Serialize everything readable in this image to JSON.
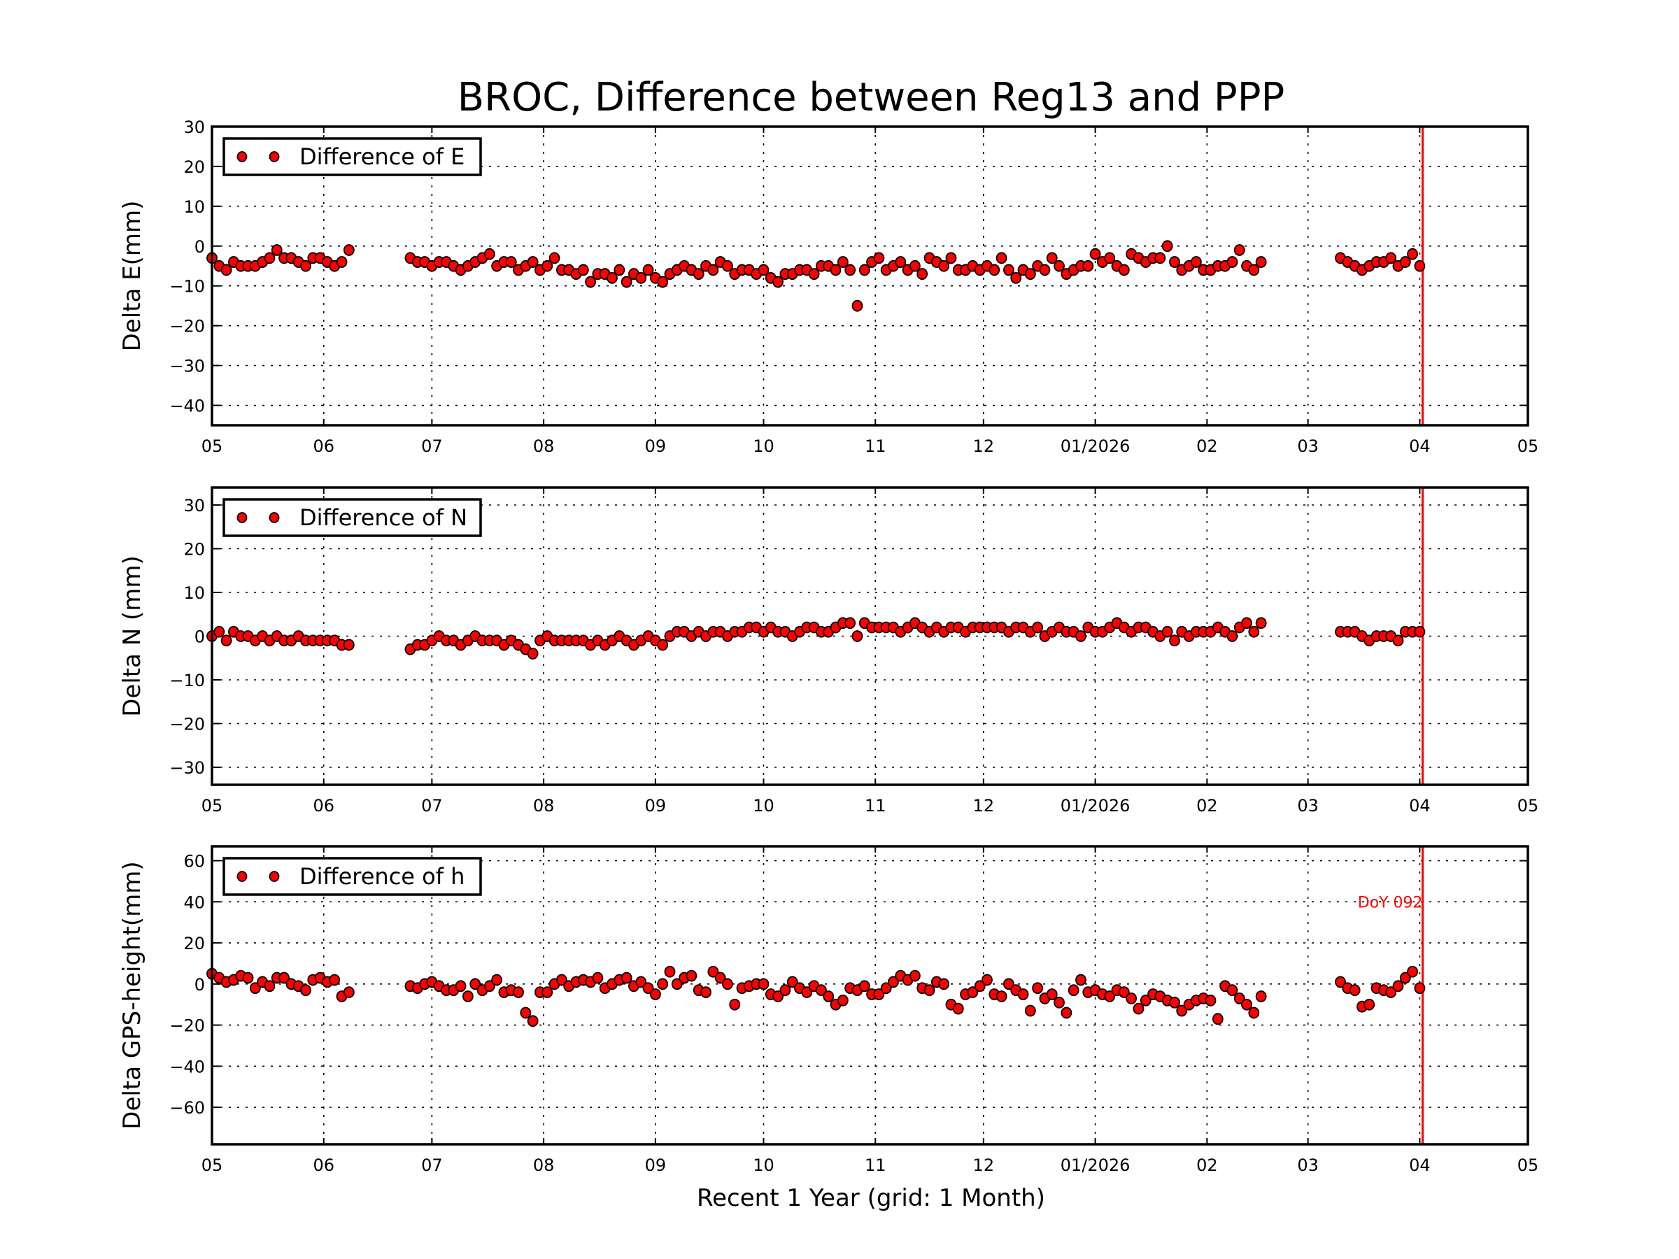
{
  "chart_data": {
    "title": "BROC, Difference between Reg13 and PPP",
    "xlabel": "Recent 1 Year (grid: 1 Month)",
    "type": "scatter",
    "grid": true,
    "x_range": [
      "2025-05-01",
      "2026-05-01"
    ],
    "x_tick_dates": [
      "2025-05-01",
      "2025-06-01",
      "2025-07-01",
      "2025-08-01",
      "2025-09-01",
      "2025-10-01",
      "2025-11-01",
      "2025-12-01",
      "2026-01-01",
      "2026-02-01",
      "2026-03-01",
      "2026-04-01",
      "2026-05-01"
    ],
    "x_tick_labels": [
      "05",
      "06",
      "07",
      "08",
      "09",
      "10",
      "11",
      "12",
      "01/2026",
      "02",
      "03",
      "04",
      "05"
    ],
    "marker_color": "#ff0000",
    "marker_edge_color": "#000000",
    "reference_line": {
      "date": "2026-04-02",
      "label": "DoY 092",
      "color": "#ff0000"
    },
    "x": [
      "2025-05-01",
      "2025-05-03",
      "2025-05-05",
      "2025-05-07",
      "2025-05-09",
      "2025-05-11",
      "2025-05-13",
      "2025-05-15",
      "2025-05-17",
      "2025-05-19",
      "2025-05-21",
      "2025-05-23",
      "2025-05-25",
      "2025-05-27",
      "2025-05-29",
      "2025-05-31",
      "2025-06-02",
      "2025-06-04",
      "2025-06-06",
      "2025-06-08",
      "2025-06-25",
      "2025-06-27",
      "2025-06-29",
      "2025-07-01",
      "2025-07-03",
      "2025-07-05",
      "2025-07-07",
      "2025-07-09",
      "2025-07-11",
      "2025-07-13",
      "2025-07-15",
      "2025-07-17",
      "2025-07-19",
      "2025-07-21",
      "2025-07-23",
      "2025-07-25",
      "2025-07-27",
      "2025-07-29",
      "2025-07-31",
      "2025-08-02",
      "2025-08-04",
      "2025-08-06",
      "2025-08-08",
      "2025-08-10",
      "2025-08-12",
      "2025-08-14",
      "2025-08-16",
      "2025-08-18",
      "2025-08-20",
      "2025-08-22",
      "2025-08-24",
      "2025-08-26",
      "2025-08-28",
      "2025-08-30",
      "2025-09-01",
      "2025-09-03",
      "2025-09-05",
      "2025-09-07",
      "2025-09-09",
      "2025-09-11",
      "2025-09-13",
      "2025-09-15",
      "2025-09-17",
      "2025-09-19",
      "2025-09-21",
      "2025-09-23",
      "2025-09-25",
      "2025-09-27",
      "2025-09-29",
      "2025-10-01",
      "2025-10-03",
      "2025-10-05",
      "2025-10-07",
      "2025-10-09",
      "2025-10-11",
      "2025-10-13",
      "2025-10-15",
      "2025-10-17",
      "2025-10-19",
      "2025-10-21",
      "2025-10-23",
      "2025-10-25",
      "2025-10-27",
      "2025-10-29",
      "2025-10-31",
      "2025-11-02",
      "2025-11-04",
      "2025-11-06",
      "2025-11-08",
      "2025-11-10",
      "2025-11-12",
      "2025-11-14",
      "2025-11-16",
      "2025-11-18",
      "2025-11-20",
      "2025-11-22",
      "2025-11-24",
      "2025-11-26",
      "2025-11-28",
      "2025-11-30",
      "2025-12-02",
      "2025-12-04",
      "2025-12-06",
      "2025-12-08",
      "2025-12-10",
      "2025-12-12",
      "2025-12-14",
      "2025-12-16",
      "2025-12-18",
      "2025-12-20",
      "2025-12-22",
      "2025-12-24",
      "2025-12-26",
      "2025-12-28",
      "2025-12-30",
      "2026-01-01",
      "2026-01-03",
      "2026-01-05",
      "2026-01-07",
      "2026-01-09",
      "2026-01-11",
      "2026-01-13",
      "2026-01-15",
      "2026-01-17",
      "2026-01-19",
      "2026-01-21",
      "2026-01-23",
      "2026-01-25",
      "2026-01-27",
      "2026-01-29",
      "2026-01-31",
      "2026-02-02",
      "2026-02-04",
      "2026-02-06",
      "2026-02-08",
      "2026-02-10",
      "2026-02-12",
      "2026-02-14",
      "2026-02-16",
      "2026-03-10",
      "2026-03-12",
      "2026-03-14",
      "2026-03-16",
      "2026-03-18",
      "2026-03-20",
      "2026-03-22",
      "2026-03-24",
      "2026-03-26",
      "2026-03-28",
      "2026-03-30",
      "2026-04-01"
    ],
    "panels": [
      {
        "ylabel": "Delta E(mm)",
        "ylim": [
          -45,
          30
        ],
        "yticks": [
          -40,
          -30,
          -20,
          -10,
          0,
          10,
          20,
          30
        ],
        "ytick_labels": [
          "−40",
          "−30",
          "−20",
          "−10",
          "0",
          "10",
          "20",
          "30"
        ],
        "legend": "Difference of E",
        "legend_placement": "top-left",
        "values": [
          -3,
          -5,
          -6,
          -4,
          -5,
          -5,
          -5,
          -4,
          -3,
          -1,
          -3,
          -3,
          -4,
          -5,
          -3,
          -3,
          -4,
          -5,
          -4,
          -1,
          -3,
          -4,
          -4,
          -5,
          -4,
          -4,
          -5,
          -6,
          -5,
          -4,
          -3,
          -2,
          -5,
          -4,
          -4,
          -6,
          -5,
          -4,
          -6,
          -5,
          -3,
          -6,
          -6,
          -7,
          -6,
          -9,
          -7,
          -7,
          -8,
          -6,
          -9,
          -7,
          -8,
          -6,
          -8,
          -9,
          -7,
          -6,
          -5,
          -6,
          -7,
          -5,
          -6,
          -4,
          -5,
          -7,
          -6,
          -6,
          -7,
          -6,
          -8,
          -9,
          -7,
          -7,
          -6,
          -6,
          -7,
          -5,
          -5,
          -6,
          -4,
          -6,
          -15,
          -6,
          -4,
          -3,
          -6,
          -5,
          -4,
          -6,
          -5,
          -7,
          -3,
          -4,
          -5,
          -3,
          -6,
          -6,
          -5,
          -6,
          -5,
          -6,
          -3,
          -6,
          -8,
          -6,
          -7,
          -5,
          -6,
          -3,
          -5,
          -7,
          -6,
          -5,
          -5,
          -2,
          -4,
          -3,
          -5,
          -6,
          -2,
          -3,
          -4,
          -3,
          -3,
          0,
          -4,
          -6,
          -5,
          -4,
          -6,
          -6,
          -5,
          -5,
          -4,
          -1,
          -5,
          -6,
          -4,
          -3,
          -4,
          -5,
          -6,
          -5,
          -4,
          -4,
          -3,
          -5,
          -4,
          -2,
          -5
        ]
      },
      {
        "ylabel": "Delta N (mm)",
        "ylim": [
          -34,
          34
        ],
        "yticks": [
          -30,
          -20,
          -10,
          0,
          10,
          20,
          30
        ],
        "ytick_labels": [
          "−30",
          "−20",
          "−10",
          "0",
          "10",
          "20",
          "30"
        ],
        "legend": "Difference of N",
        "legend_placement": "top-left",
        "values": [
          0,
          1,
          -1,
          1,
          0,
          0,
          -1,
          0,
          -1,
          0,
          -1,
          -1,
          0,
          -1,
          -1,
          -1,
          -1,
          -1,
          -2,
          -2,
          -3,
          -2,
          -2,
          -1,
          0,
          -1,
          -1,
          -2,
          -1,
          0,
          -1,
          -1,
          -1,
          -2,
          -1,
          -2,
          -3,
          -4,
          -1,
          0,
          -1,
          -1,
          -1,
          -1,
          -1,
          -2,
          -1,
          -2,
          -1,
          0,
          -1,
          -2,
          -1,
          0,
          -1,
          -2,
          0,
          1,
          1,
          0,
          1,
          0,
          1,
          1,
          0,
          1,
          1,
          2,
          2,
          1,
          2,
          1,
          1,
          0,
          1,
          2,
          2,
          1,
          1,
          2,
          3,
          3,
          0,
          3,
          2,
          2,
          2,
          2,
          1,
          2,
          3,
          2,
          1,
          2,
          1,
          2,
          2,
          1,
          2,
          2,
          2,
          2,
          2,
          1,
          2,
          2,
          1,
          2,
          0,
          1,
          2,
          1,
          1,
          0,
          2,
          1,
          1,
          2,
          3,
          2,
          1,
          2,
          2,
          1,
          0,
          1,
          -1,
          1,
          0,
          1,
          1,
          1,
          2,
          1,
          0,
          2,
          3,
          1,
          3,
          1,
          1,
          1,
          0,
          -1,
          0,
          0,
          0,
          -1,
          1,
          1,
          1
        ]
      },
      {
        "ylabel": "Delta GPS-height(mm)",
        "ylim": [
          -78,
          67
        ],
        "yticks": [
          -60,
          -40,
          -20,
          0,
          20,
          40,
          60
        ],
        "ytick_labels": [
          "−60",
          "−40",
          "−20",
          "0",
          "20",
          "40",
          "60"
        ],
        "legend": "Difference of h",
        "legend_placement": "top-left",
        "annotation": "DoY 092",
        "values": [
          5,
          3,
          1,
          2,
          4,
          3,
          -2,
          1,
          -1,
          3,
          3,
          0,
          -1,
          -3,
          2,
          3,
          1,
          2,
          -6,
          -4,
          -1,
          -2,
          0,
          1,
          -1,
          -3,
          -3,
          -1,
          -6,
          0,
          -3,
          -1,
          2,
          -4,
          -3,
          -4,
          -14,
          -18,
          -4,
          -4,
          0,
          2,
          -1,
          1,
          2,
          1,
          3,
          -2,
          0,
          2,
          3,
          -1,
          1,
          -2,
          -5,
          0,
          6,
          0,
          3,
          4,
          -3,
          -4,
          6,
          3,
          0,
          -10,
          -2,
          -1,
          0,
          0,
          -5,
          -6,
          -3,
          1,
          -2,
          -4,
          -1,
          -3,
          -6,
          -10,
          -8,
          -2,
          -3,
          -1,
          -5,
          -5,
          -2,
          1,
          4,
          2,
          4,
          -2,
          -3,
          1,
          0,
          -10,
          -12,
          -5,
          -4,
          -1,
          2,
          -5,
          -6,
          0,
          -3,
          -5,
          -13,
          -2,
          -7,
          -5,
          -9,
          -14,
          -3,
          2,
          -4,
          -3,
          -5,
          -6,
          -3,
          -4,
          -7,
          -12,
          -8,
          -5,
          -6,
          -8,
          -9,
          -13,
          -10,
          -8,
          -7,
          -8,
          -17,
          -1,
          -3,
          -7,
          -10,
          -14,
          -6,
          1,
          -2,
          -3,
          -11,
          -10,
          -2,
          -3,
          -4,
          -1,
          3,
          6,
          -2
        ]
      }
    ]
  }
}
